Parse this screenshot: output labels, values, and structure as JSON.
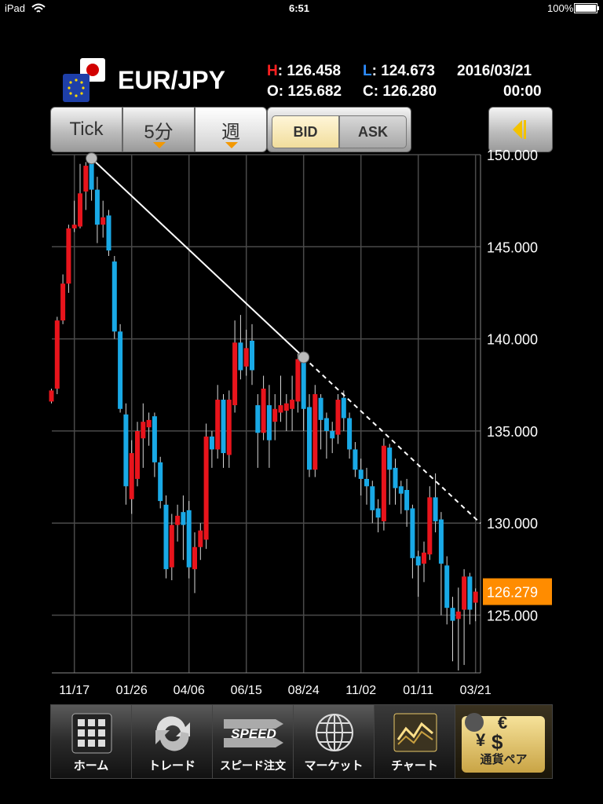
{
  "status_bar": {
    "device": "iPad",
    "time": "6:51",
    "battery": "100%"
  },
  "header": {
    "pair": "EUR/JPY",
    "high_key": "H",
    "high": ": 126.458",
    "low_key": "L",
    "low": ": 124.673",
    "date": "2016/03/21",
    "open": "O: 125.682",
    "close": "C: 126.280",
    "clock": "00:00"
  },
  "toolbar": {
    "periods": [
      "Tick",
      "5分",
      "週"
    ],
    "sides": [
      "BID",
      "ASK"
    ]
  },
  "chart_data": {
    "type": "candlestick",
    "categories": [
      null,
      null,
      null,
      null,
      "11/17",
      null,
      null,
      null,
      null,
      null,
      null,
      null,
      null,
      null,
      "01/26",
      null,
      null,
      null,
      null,
      null,
      null,
      null,
      null,
      null,
      "04/06",
      null,
      null,
      null,
      null,
      null,
      null,
      null,
      null,
      null,
      "06/15",
      null,
      null,
      null,
      null,
      null,
      null,
      null,
      null,
      null,
      "08/24",
      null,
      null,
      null,
      null,
      null,
      null,
      null,
      null,
      null,
      "11/02",
      null,
      null,
      null,
      null,
      null,
      null,
      null,
      null,
      null,
      "01/11",
      null,
      null,
      null,
      null,
      null,
      null,
      null,
      null,
      null,
      "03/21"
    ],
    "open": [
      136.6,
      137.3,
      141,
      143,
      146,
      146.1,
      148,
      149.6,
      148.1,
      146.2,
      146.7,
      144.2,
      140.4,
      135.9,
      131.3,
      132.4,
      134.6,
      135.2,
      135.8,
      133.3,
      131,
      127.6,
      129.9,
      130.6,
      130.7,
      127.5,
      128.7,
      129.1,
      134.7,
      134,
      136.7,
      133.7,
      136.4,
      139.8,
      138.5,
      139.9,
      136.4,
      134.9,
      136.4,
      135.5,
      136.0,
      136.1,
      136.2,
      136.6,
      139,
      136.3,
      132.9,
      136.8,
      135.7,
      135,
      134.8,
      136.8,
      135.7,
      134,
      132.9,
      132.4,
      132,
      130.8,
      130.1,
      134.1,
      133,
      132,
      131.8,
      130.8,
      128.2,
      127.8,
      128.3,
      131.4,
      130.2,
      127.7,
      125.4,
      124.8,
      125.3,
      127.1,
      125.682
    ],
    "high": [
      137.3,
      141.2,
      143.5,
      146.2,
      147.5,
      149.5,
      149.6,
      149.8,
      148.8,
      147.5,
      147,
      144.5,
      140.8,
      136.5,
      134.5,
      135.5,
      136.5,
      136,
      136,
      133.6,
      131.5,
      130.5,
      131,
      131.5,
      131.2,
      129.5,
      130,
      135.4,
      135,
      137.5,
      137,
      137.2,
      141,
      141.3,
      140.5,
      140.8,
      137,
      138,
      137.5,
      137,
      138,
      137,
      138,
      139.2,
      139.2,
      137,
      137.5,
      137,
      136,
      135.5,
      137,
      137.2,
      136,
      134.4,
      133.5,
      133,
      132.3,
      131.3,
      134.6,
      134.3,
      133.5,
      132.3,
      132.4,
      131,
      128.5,
      129,
      132,
      132.7,
      130.6,
      128.2,
      126,
      126.5,
      127.5,
      127.3,
      126.458
    ],
    "low": [
      136.5,
      137,
      140.8,
      142.5,
      145.8,
      146,
      147,
      147.5,
      145.2,
      145.5,
      144.5,
      140,
      136,
      131,
      130.5,
      132,
      133,
      134.2,
      132.5,
      130.8,
      127,
      126.9,
      129,
      128,
      127,
      126.2,
      128,
      128.6,
      133,
      133.5,
      133,
      133,
      136,
      137.8,
      138,
      137.5,
      133,
      134.5,
      133,
      134.5,
      135.5,
      135,
      135,
      136,
      135,
      132.5,
      132.5,
      134,
      133.5,
      133.8,
      134.3,
      135,
      133.5,
      132.5,
      131.5,
      131,
      130,
      129.5,
      129.6,
      131,
      131,
      130.5,
      129.8,
      127,
      126,
      126.8,
      128,
      129.5,
      125,
      124.5,
      122.5,
      122,
      122.3,
      124.5,
      124.673
    ],
    "close": [
      137.2,
      141,
      143,
      146,
      146.2,
      147.9,
      149.4,
      148.1,
      146.2,
      146.6,
      144.8,
      140.4,
      136.2,
      132,
      133.8,
      135,
      135.5,
      135.6,
      133.3,
      131.2,
      127.5,
      129.9,
      130.4,
      129.9,
      127.6,
      128.7,
      129.6,
      134.7,
      134,
      136.7,
      133.8,
      136.7,
      139.8,
      138.3,
      139.5,
      138.3,
      134.9,
      137.3,
      134.5,
      136.2,
      136.4,
      136.5,
      136.7,
      138.9,
      136.2,
      132.9,
      137,
      135.6,
      135,
      134.6,
      136.7,
      135.7,
      134,
      132.9,
      132.4,
      132,
      130.7,
      130.3,
      134.2,
      132.9,
      131.9,
      131.6,
      130.7,
      128.1,
      127.7,
      128.4,
      131.4,
      130.1,
      127.8,
      125.4,
      124.7,
      125.2,
      127.1,
      125.3,
      126.28
    ],
    "up_color": "#e8141c",
    "down_color": "#19a9e6",
    "ylim": [
      121.87,
      150
    ],
    "yticks": [
      {
        "value": 125,
        "label": "125.000"
      },
      {
        "value": 130,
        "label": "130.000"
      },
      {
        "value": 135,
        "label": "135.000"
      },
      {
        "value": 140,
        "label": "140.000"
      },
      {
        "value": 145,
        "label": "145.000"
      },
      {
        "value": 150,
        "label": "150.000"
      }
    ],
    "grid": true,
    "yaxis_side": "right",
    "trendline": {
      "x": [
        7,
        44
      ],
      "values": [
        149.8,
        139.0
      ]
    },
    "last_price": {
      "value": 126.279,
      "label": "126.279",
      "color": "#ff8c00"
    }
  },
  "tabs": [
    "ホーム",
    "トレード",
    "スピード注文",
    "マーケット",
    "チャート",
    "通貨ペア"
  ],
  "speed_icon": "SPEED"
}
